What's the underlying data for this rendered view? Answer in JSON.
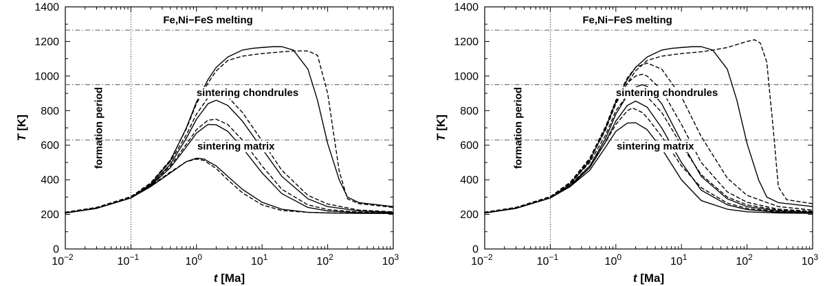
{
  "chart_data": [
    {
      "type": "line",
      "xscale": "log",
      "xlim": [
        0.01,
        1000
      ],
      "ylim": [
        0,
        1400
      ],
      "xlabel_var": "t",
      "xlabel_unit": "[Ma]",
      "ylabel_var": "T",
      "ylabel_unit": "[K]",
      "x_ticks": [
        {
          "mantissa": "10",
          "exp": "−2",
          "value": 0.01
        },
        {
          "mantissa": "10",
          "exp": "−1",
          "value": 0.1
        },
        {
          "mantissa": "10",
          "exp": "0",
          "value": 1
        },
        {
          "mantissa": "10",
          "exp": "1",
          "value": 10
        },
        {
          "mantissa": "10",
          "exp": "2",
          "value": 100
        },
        {
          "mantissa": "10",
          "exp": "3",
          "value": 1000
        }
      ],
      "y_ticks": [
        "0",
        "200",
        "400",
        "600",
        "800",
        "1000",
        "1200",
        "1400"
      ],
      "hlines": [
        {
          "y": 1265,
          "label": "Fe,Ni−FeS melting",
          "label_x": 1.5,
          "label_y": 1305
        },
        {
          "y": 950,
          "label": "sintering chondrules",
          "label_x": 6,
          "label_y": 885
        },
        {
          "y": 630,
          "label": "sintering matrix",
          "label_x": 4,
          "label_y": 575
        }
      ],
      "vline": {
        "x": 0.1,
        "label": "formation period",
        "label_y": 700
      },
      "series": [
        {
          "name": "solid-1",
          "style": "solid",
          "x": [
            0.01,
            0.03,
            0.1,
            0.2,
            0.4,
            0.7,
            1,
            1.3,
            2,
            3,
            5,
            10,
            20,
            50,
            100,
            300,
            1000
          ],
          "y": [
            208,
            235,
            295,
            360,
            440,
            505,
            525,
            520,
            480,
            420,
            345,
            270,
            230,
            212,
            208,
            206,
            205
          ]
        },
        {
          "name": "dashed-1",
          "style": "dashed",
          "x": [
            0.01,
            0.03,
            0.1,
            0.2,
            0.4,
            0.7,
            1,
            1.3,
            2,
            3,
            5,
            10,
            20,
            50,
            100,
            300,
            1000
          ],
          "y": [
            212,
            240,
            302,
            365,
            445,
            505,
            520,
            512,
            465,
            400,
            325,
            255,
            222,
            212,
            209,
            207,
            206
          ]
        },
        {
          "name": "solid-2",
          "style": "solid",
          "x": [
            0.01,
            0.03,
            0.1,
            0.2,
            0.4,
            0.7,
            1,
            1.5,
            2,
            3,
            5,
            10,
            20,
            50,
            100,
            300,
            1000
          ],
          "y": [
            208,
            235,
            295,
            365,
            470,
            590,
            670,
            720,
            718,
            680,
            585,
            440,
            320,
            240,
            220,
            210,
            208
          ]
        },
        {
          "name": "dashed-2",
          "style": "dashed",
          "x": [
            0.01,
            0.03,
            0.1,
            0.2,
            0.4,
            0.7,
            1,
            1.5,
            2,
            3,
            5,
            10,
            20,
            50,
            100,
            300,
            1000
          ],
          "y": [
            212,
            240,
            302,
            372,
            480,
            605,
            690,
            745,
            750,
            720,
            630,
            480,
            345,
            255,
            228,
            213,
            210
          ]
        },
        {
          "name": "solid-3",
          "style": "solid",
          "x": [
            0.01,
            0.03,
            0.1,
            0.2,
            0.4,
            0.7,
            1,
            1.5,
            2,
            3,
            5,
            10,
            20,
            50,
            100,
            300,
            1000
          ],
          "y": [
            208,
            235,
            295,
            370,
            490,
            640,
            750,
            840,
            860,
            830,
            740,
            580,
            420,
            290,
            245,
            220,
            212
          ]
        },
        {
          "name": "dashed-3",
          "style": "dashed",
          "x": [
            0.01,
            0.03,
            0.1,
            0.2,
            0.4,
            0.7,
            1,
            1.5,
            2,
            3,
            5,
            10,
            20,
            50,
            100,
            300,
            1000
          ],
          "y": [
            212,
            240,
            302,
            378,
            505,
            660,
            780,
            875,
            900,
            880,
            790,
            625,
            455,
            310,
            260,
            225,
            215
          ]
        },
        {
          "name": "solid-4",
          "style": "solid",
          "x": [
            0.01,
            0.03,
            0.1,
            0.2,
            0.4,
            0.7,
            1,
            1.5,
            2,
            3,
            5,
            7,
            10,
            15,
            20,
            30,
            50,
            70,
            100,
            150,
            200,
            300,
            1000
          ],
          "y": [
            208,
            235,
            295,
            375,
            510,
            700,
            850,
            980,
            1050,
            1110,
            1150,
            1160,
            1165,
            1170,
            1170,
            1150,
            1040,
            860,
            610,
            400,
            300,
            268,
            245
          ]
        },
        {
          "name": "dashed-4",
          "style": "dashed",
          "x": [
            0.01,
            0.03,
            0.1,
            0.2,
            0.4,
            0.7,
            1,
            1.5,
            2,
            3,
            5,
            10,
            20,
            30,
            50,
            70,
            100,
            150,
            200,
            300,
            1000
          ],
          "y": [
            212,
            240,
            302,
            382,
            515,
            695,
            840,
            960,
            1030,
            1090,
            1115,
            1130,
            1140,
            1145,
            1145,
            1120,
            900,
            450,
            290,
            262,
            240
          ]
        }
      ]
    },
    {
      "type": "line",
      "xscale": "log",
      "xlim": [
        0.01,
        1000
      ],
      "ylim": [
        0,
        1400
      ],
      "xlabel_var": "t",
      "xlabel_unit": "[Ma]",
      "ylabel_var": "T",
      "ylabel_unit": "[K]",
      "x_ticks": [
        {
          "mantissa": "10",
          "exp": "−2",
          "value": 0.01
        },
        {
          "mantissa": "10",
          "exp": "−1",
          "value": 0.1
        },
        {
          "mantissa": "10",
          "exp": "0",
          "value": 1
        },
        {
          "mantissa": "10",
          "exp": "1",
          "value": 10
        },
        {
          "mantissa": "10",
          "exp": "2",
          "value": 100
        },
        {
          "mantissa": "10",
          "exp": "3",
          "value": 1000
        }
      ],
      "y_ticks": [
        "0",
        "200",
        "400",
        "600",
        "800",
        "1000",
        "1200",
        "1400"
      ],
      "hlines": [
        {
          "y": 1265,
          "label": "Fe,Ni−FeS melting",
          "label_x": 1.5,
          "label_y": 1305
        },
        {
          "y": 950,
          "label": "sintering chondrules",
          "label_x": 6,
          "label_y": 885
        },
        {
          "y": 630,
          "label": "sintering matrix",
          "label_x": 4,
          "label_y": 575
        }
      ],
      "vline": {
        "x": 0.1,
        "label": "formation period",
        "label_y": 700
      },
      "series": [
        {
          "name": "solid-1",
          "style": "solid",
          "x": [
            0.01,
            0.03,
            0.1,
            0.2,
            0.4,
            0.7,
            1,
            1.5,
            2,
            3,
            5,
            10,
            20,
            50,
            100,
            300,
            1000
          ],
          "y": [
            208,
            235,
            295,
            360,
            455,
            590,
            680,
            728,
            730,
            690,
            580,
            400,
            280,
            230,
            215,
            208,
            206
          ]
        },
        {
          "name": "solid-2",
          "style": "solid",
          "x": [
            0.01,
            0.03,
            0.1,
            0.2,
            0.4,
            0.7,
            1,
            1.5,
            2,
            3,
            5,
            10,
            20,
            50,
            100,
            300,
            1000
          ],
          "y": [
            208,
            235,
            295,
            362,
            470,
            620,
            740,
            830,
            855,
            820,
            700,
            500,
            340,
            255,
            228,
            212,
            208
          ]
        },
        {
          "name": "solid-3",
          "style": "solid",
          "x": [
            0.01,
            0.03,
            0.1,
            0.2,
            0.4,
            0.7,
            1,
            1.5,
            2,
            2.5,
            3,
            5,
            10,
            20,
            50,
            100,
            300,
            1000
          ],
          "y": [
            208,
            235,
            295,
            365,
            480,
            640,
            780,
            890,
            935,
            950,
            940,
            840,
            620,
            420,
            290,
            245,
            220,
            212
          ]
        },
        {
          "name": "dashed-1",
          "style": "dashed",
          "x": [
            0.01,
            0.03,
            0.1,
            0.2,
            0.4,
            0.7,
            1,
            1.5,
            1.8,
            2.5,
            3,
            5,
            10,
            20,
            50,
            100,
            300,
            1000
          ],
          "y": [
            212,
            240,
            302,
            372,
            480,
            620,
            720,
            800,
            815,
            790,
            760,
            650,
            480,
            355,
            265,
            235,
            215,
            210
          ]
        },
        {
          "name": "dashed-2",
          "style": "dashed",
          "x": [
            0.01,
            0.03,
            0.1,
            0.2,
            0.4,
            0.7,
            1,
            1.5,
            2,
            3,
            5,
            10,
            20,
            50,
            100,
            300,
            1000
          ],
          "y": [
            212,
            240,
            302,
            378,
            500,
            660,
            800,
            890,
            910,
            880,
            790,
            600,
            430,
            300,
            255,
            225,
            215
          ]
        },
        {
          "name": "dashed-3",
          "style": "dashed",
          "x": [
            0.01,
            0.03,
            0.1,
            0.2,
            0.4,
            0.7,
            1,
            1.5,
            2,
            2.5,
            3,
            5,
            10,
            20,
            50,
            100,
            300,
            1000
          ],
          "y": [
            212,
            240,
            302,
            382,
            515,
            690,
            840,
            960,
            1000,
            1010,
            1000,
            920,
            720,
            500,
            330,
            270,
            230,
            218
          ]
        },
        {
          "name": "dashed-4",
          "style": "dashed",
          "x": [
            0.01,
            0.03,
            0.1,
            0.2,
            0.4,
            0.7,
            1,
            1.5,
            2,
            3,
            5,
            10,
            20,
            50,
            100,
            300,
            1000
          ],
          "y": [
            212,
            240,
            302,
            385,
            525,
            710,
            860,
            990,
            1050,
            1075,
            1040,
            880,
            650,
            410,
            310,
            245,
            225
          ]
        },
        {
          "name": "solid-4",
          "style": "solid",
          "x": [
            0.01,
            0.03,
            0.1,
            0.2,
            0.4,
            0.7,
            1,
            1.5,
            2,
            3,
            5,
            7,
            10,
            15,
            20,
            30,
            50,
            70,
            100,
            150,
            200,
            300,
            1000
          ],
          "y": [
            208,
            235,
            295,
            375,
            510,
            700,
            850,
            980,
            1050,
            1110,
            1150,
            1160,
            1165,
            1170,
            1170,
            1150,
            1040,
            860,
            610,
            400,
            300,
            268,
            245
          ]
        },
        {
          "name": "dashed-5",
          "style": "dashed",
          "x": [
            0.01,
            0.03,
            0.1,
            0.2,
            0.4,
            0.7,
            1,
            1.5,
            2,
            3,
            5,
            10,
            20,
            30,
            50,
            100,
            130,
            160,
            200,
            250,
            300,
            400,
            1000
          ],
          "y": [
            212,
            240,
            302,
            382,
            515,
            695,
            840,
            960,
            1030,
            1090,
            1115,
            1130,
            1140,
            1150,
            1165,
            1200,
            1210,
            1190,
            1080,
            700,
            360,
            285,
            262
          ]
        }
      ]
    }
  ]
}
